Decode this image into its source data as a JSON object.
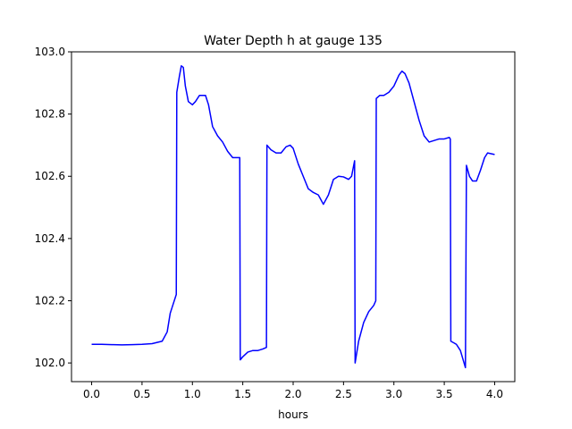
{
  "chart_data": {
    "type": "line",
    "title": "Water Depth h at gauge 135",
    "xlabel": "hours",
    "ylabel": "",
    "xlim": [
      -0.2,
      4.2
    ],
    "ylim": [
      101.94,
      103.0
    ],
    "xticks": [
      0.0,
      0.5,
      1.0,
      1.5,
      2.0,
      2.5,
      3.0,
      3.5,
      4.0
    ],
    "xtick_labels": [
      "0.0",
      "0.5",
      "1.0",
      "1.5",
      "2.0",
      "2.5",
      "3.0",
      "3.5",
      "4.0"
    ],
    "yticks": [
      102.0,
      102.2,
      102.4,
      102.6,
      102.8,
      103.0
    ],
    "ytick_labels": [
      "102.0",
      "102.2",
      "102.4",
      "102.6",
      "102.8",
      "103.0"
    ],
    "grid": false,
    "series": [
      {
        "color": "#0000ff",
        "x": [
          0.0,
          0.1,
          0.2,
          0.3,
          0.4,
          0.5,
          0.6,
          0.7,
          0.75,
          0.78,
          0.8,
          0.84,
          0.845,
          0.87,
          0.89,
          0.91,
          0.93,
          0.96,
          1.0,
          1.03,
          1.07,
          1.1,
          1.13,
          1.16,
          1.2,
          1.25,
          1.3,
          1.35,
          1.4,
          1.45,
          1.47,
          1.475,
          1.5,
          1.55,
          1.6,
          1.65,
          1.7,
          1.735,
          1.74,
          1.78,
          1.83,
          1.88,
          1.93,
          1.97,
          2.0,
          2.05,
          2.1,
          2.15,
          2.2,
          2.25,
          2.3,
          2.35,
          2.4,
          2.45,
          2.5,
          2.55,
          2.58,
          2.61,
          2.615,
          2.65,
          2.7,
          2.75,
          2.8,
          2.82,
          2.825,
          2.86,
          2.9,
          2.95,
          3.0,
          3.05,
          3.08,
          3.11,
          3.15,
          3.2,
          3.25,
          3.3,
          3.35,
          3.4,
          3.45,
          3.5,
          3.55,
          3.56,
          3.565,
          3.62,
          3.66,
          3.71,
          3.72,
          3.75,
          3.78,
          3.82,
          3.86,
          3.9,
          3.93,
          4.0
        ],
        "y": [
          102.06,
          102.06,
          102.059,
          102.058,
          102.059,
          102.06,
          102.062,
          102.07,
          102.1,
          102.16,
          102.18,
          102.22,
          102.87,
          102.92,
          102.955,
          102.95,
          102.89,
          102.84,
          102.83,
          102.84,
          102.86,
          102.86,
          102.86,
          102.83,
          102.76,
          102.73,
          102.71,
          102.68,
          102.66,
          102.66,
          102.66,
          102.01,
          102.02,
          102.035,
          102.04,
          102.04,
          102.045,
          102.05,
          102.7,
          102.685,
          102.675,
          102.675,
          102.695,
          102.7,
          102.69,
          102.64,
          102.6,
          102.56,
          102.548,
          102.54,
          102.51,
          102.54,
          102.59,
          102.6,
          102.598,
          102.59,
          102.6,
          102.65,
          102.0,
          102.07,
          102.13,
          102.165,
          102.185,
          102.2,
          102.85,
          102.86,
          102.86,
          102.87,
          102.89,
          102.925,
          102.938,
          102.93,
          102.9,
          102.84,
          102.78,
          102.73,
          102.71,
          102.715,
          102.72,
          102.72,
          102.725,
          102.72,
          102.07,
          102.06,
          102.04,
          101.985,
          102.635,
          102.6,
          102.585,
          102.585,
          102.62,
          102.66,
          102.675,
          102.67
        ]
      }
    ]
  }
}
